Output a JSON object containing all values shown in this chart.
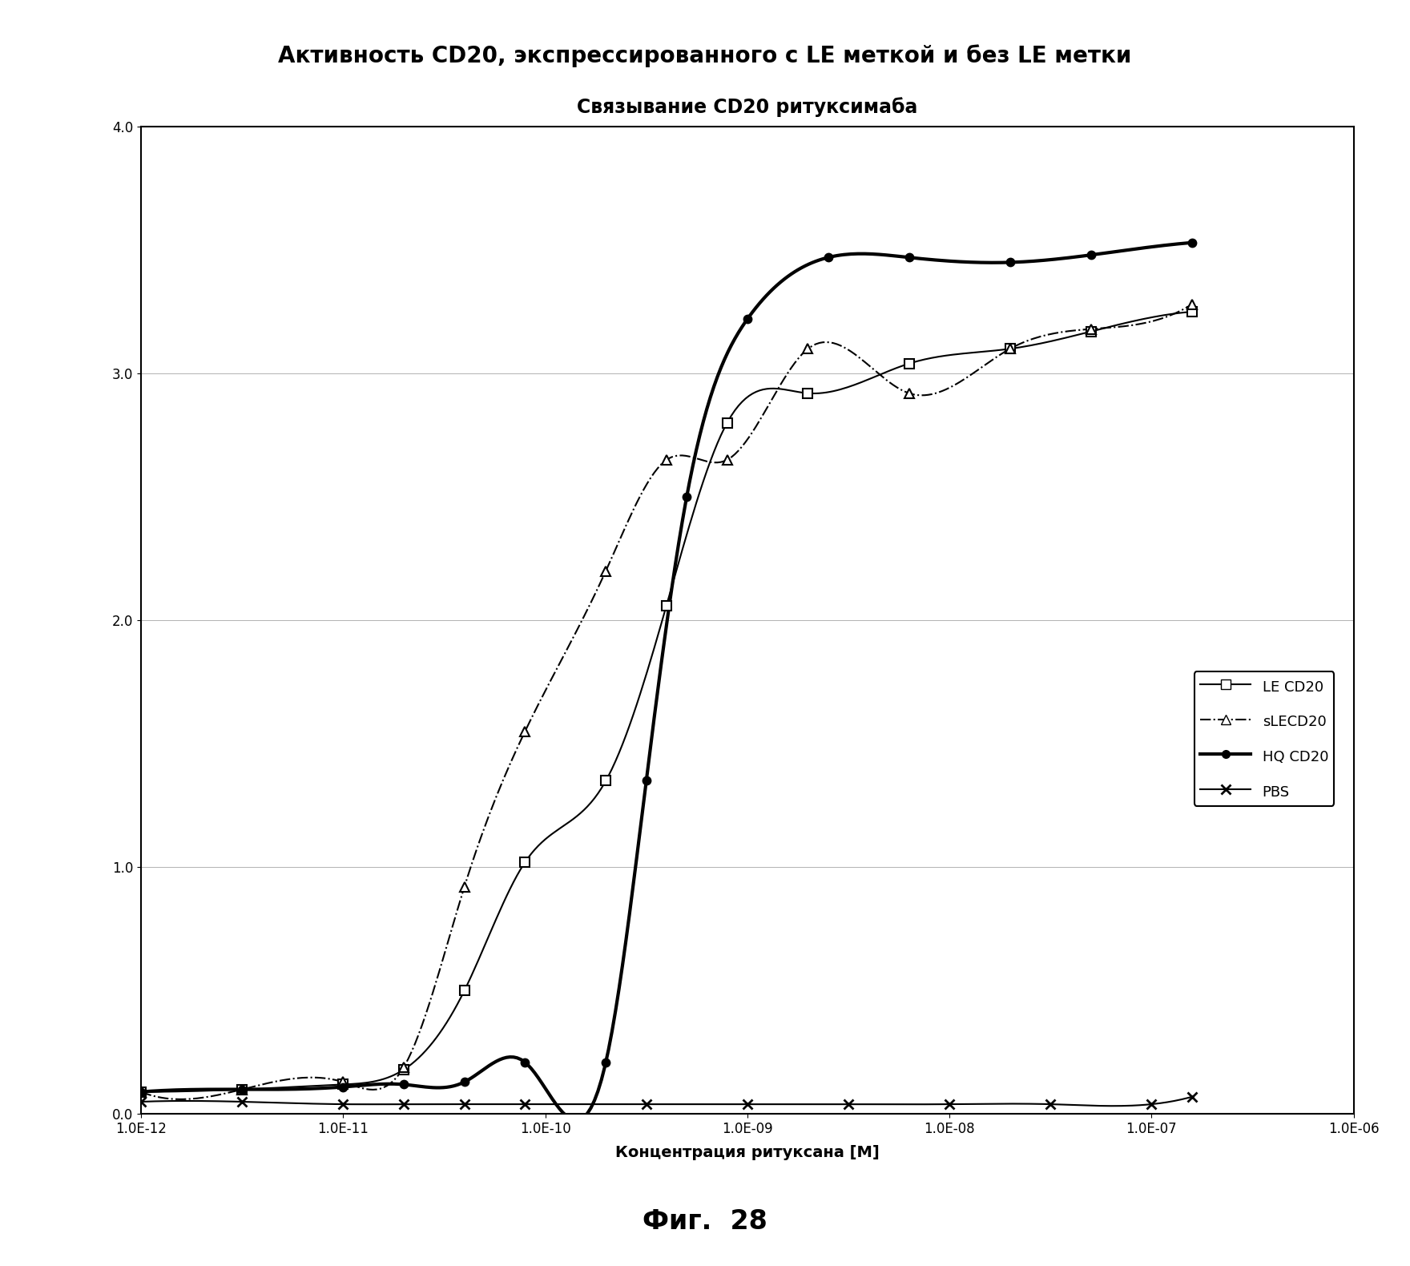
{
  "title_main": "Активность CD20, экспрессированного с LE меткой и без LE метки",
  "title_sub": "Связывание CD20 ритуксимаба",
  "xlabel": "Концентрация ритуксана [М]",
  "fig_caption": "Фиг.  28",
  "ylim": [
    0.0,
    4.0
  ],
  "yticks": [
    0.0,
    1.0,
    2.0,
    3.0,
    4.0
  ],
  "ytick_labels": [
    "0.0",
    "1.0",
    "2.0",
    "3.0",
    "4.0"
  ],
  "xtick_labels": [
    "1.0E-12",
    "1.0E-11",
    "1.0E-10",
    "1.0E-09",
    "1.0E-08",
    "1.0E-07",
    "1.0E-06"
  ],
  "xtick_values": [
    -12,
    -11,
    -10,
    -9,
    -8,
    -7,
    -6
  ],
  "LE_CD20_x": [
    -12,
    -11.5,
    -11,
    -10.7,
    -10.4,
    -10.1,
    -9.7,
    -9.4,
    -9.1,
    -8.7,
    -8.2,
    -7.7,
    -7.3,
    -6.8
  ],
  "LE_CD20_y": [
    0.09,
    0.1,
    0.12,
    0.18,
    0.5,
    1.02,
    1.35,
    2.06,
    2.8,
    2.92,
    3.04,
    3.1,
    3.17,
    3.25
  ],
  "sLECD20_x": [
    -12,
    -11.5,
    -11,
    -10.7,
    -10.4,
    -10.1,
    -9.7,
    -9.4,
    -9.1,
    -8.7,
    -8.2,
    -7.7,
    -7.3,
    -6.8
  ],
  "sLECD20_y": [
    0.09,
    0.1,
    0.13,
    0.19,
    0.92,
    1.55,
    2.2,
    2.65,
    2.65,
    3.1,
    2.92,
    3.1,
    3.18,
    3.28
  ],
  "HQ_CD20_x": [
    -12,
    -11.5,
    -11,
    -10.7,
    -10.4,
    -10.1,
    -9.7,
    -9.5,
    -9.3,
    -9.0,
    -8.6,
    -8.2,
    -7.7,
    -7.3,
    -6.8
  ],
  "HQ_CD20_y": [
    0.09,
    0.1,
    0.11,
    0.12,
    0.13,
    0.21,
    0.21,
    1.35,
    2.5,
    3.22,
    3.47,
    3.47,
    3.45,
    3.48,
    3.53
  ],
  "PBS_x": [
    -12,
    -11.5,
    -11,
    -10.7,
    -10.4,
    -10.1,
    -9.5,
    -9.0,
    -8.5,
    -8.0,
    -7.5,
    -7.0,
    -6.8
  ],
  "PBS_y": [
    0.05,
    0.05,
    0.04,
    0.04,
    0.04,
    0.04,
    0.04,
    0.04,
    0.04,
    0.04,
    0.04,
    0.04,
    0.07
  ],
  "title_main_fontsize": 20,
  "title_sub_fontsize": 17,
  "axis_label_fontsize": 14,
  "tick_fontsize": 12,
  "legend_fontsize": 13,
  "caption_fontsize": 24
}
